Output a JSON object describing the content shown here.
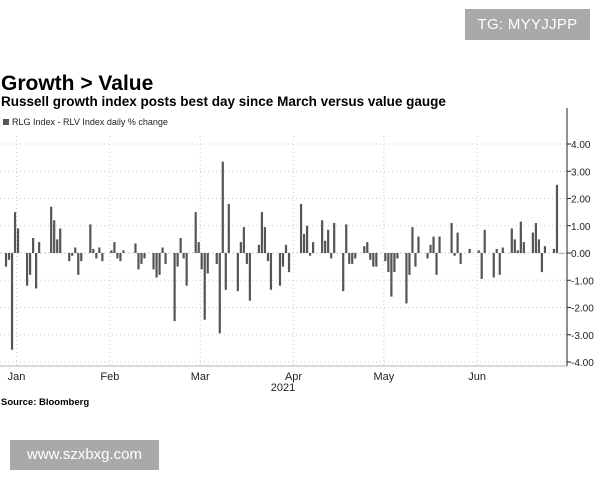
{
  "watermarks": {
    "top_right": "TG: MYYJJPP",
    "bottom_left": "www.szxbxg.com"
  },
  "source": "Source: Bloomberg",
  "colors": {
    "bar": "#555555",
    "axis": "#222222",
    "grid": "#cccccc",
    "badge": "#a9a9a9"
  },
  "chart_data": {
    "type": "bar",
    "title": "Growth > Value",
    "subtitle": "Russell growth index posts best day since March versus value gauge",
    "legend": "RLG Index - RLV Index daily % change",
    "legend_position": "top-left",
    "xlabel": "2021",
    "ylabel": "",
    "ylim": [
      -4.0,
      4.0
    ],
    "y_ticks": [
      "4.00",
      "3.00",
      "2.00",
      "1.00",
      "0.00",
      "-1.00",
      "-2.00",
      "-3.00",
      "-4.00"
    ],
    "y_axis_side": "right",
    "month_labels": [
      {
        "label": "Jan",
        "day": 7.5
      },
      {
        "label": "Feb",
        "day": 38.5
      },
      {
        "label": "Mar",
        "day": 68.5
      },
      {
        "label": "Apr",
        "day": 99.5
      },
      {
        "label": "May",
        "day": 129.5
      },
      {
        "label": "Jun",
        "day": 160.5
      }
    ],
    "dates": [
      4,
      5,
      6,
      7,
      8,
      11,
      12,
      13,
      14,
      15,
      19,
      20,
      21,
      22,
      25,
      26,
      27,
      28,
      29,
      32,
      33,
      34,
      35,
      36,
      39,
      40,
      41,
      42,
      43,
      47,
      48,
      49,
      50,
      53,
      54,
      55,
      56,
      57,
      60,
      61,
      62,
      63,
      64,
      67,
      68,
      69,
      70,
      71,
      74,
      75,
      76,
      77,
      78,
      81,
      82,
      83,
      84,
      85,
      88,
      89,
      90,
      91,
      92,
      95,
      96,
      97,
      98,
      102,
      103,
      104,
      105,
      106,
      109,
      110,
      111,
      112,
      113,
      116,
      117,
      118,
      119,
      120,
      123,
      124,
      125,
      126,
      127,
      130,
      131,
      132,
      133,
      134,
      137,
      138,
      139,
      140,
      141,
      144,
      145,
      146,
      147,
      148,
      152,
      153,
      154,
      155,
      158
    ],
    "values": [
      -0.5,
      -0.25,
      -3.55,
      1.5,
      0.9,
      -1.2,
      -0.8,
      0.55,
      -1.3,
      0.4,
      1.7,
      1.2,
      0.5,
      0.9,
      -0.3,
      -0.1,
      0.2,
      -0.8,
      -0.3,
      1.05,
      0.15,
      -0.2,
      0.2,
      -0.3,
      0.1,
      0.4,
      -0.2,
      -0.3,
      0.1,
      0.35,
      -0.6,
      -0.4,
      -0.2,
      -0.6,
      -0.9,
      -0.8,
      0.2,
      -0.4,
      -2.5,
      -0.5,
      0.55,
      -0.2,
      -1.2,
      1.5,
      0.4,
      -0.6,
      -2.45,
      -0.75,
      -0.4,
      -2.95,
      3.35,
      -1.35,
      1.8,
      -1.4,
      0.4,
      0.95,
      -0.4,
      -1.75,
      0.3,
      1.5,
      0.95,
      -0.3,
      -1.35,
      -1.2,
      -0.5,
      0.3,
      -0.7,
      1.8,
      0.7,
      1.0,
      -0.1,
      0.4,
      1.2,
      0.45,
      0.85,
      -0.2,
      1.1,
      -1.4,
      1.05,
      -0.4,
      -0.4,
      -0.2,
      0.25,
      0.4,
      -0.25,
      -0.5,
      -0.5,
      -0.3,
      -0.7,
      -1.6,
      -0.7,
      -0.2,
      -1.85,
      -0.8,
      0.95,
      -0.5,
      0.6,
      -0.2,
      0.3,
      0.6,
      -0.8,
      0.6,
      1.1,
      -0.1,
      0.75,
      -0.4,
      0.15
    ]
  },
  "chart_extra": {
    "dates_2": [
      161,
      162,
      163,
      166,
      167,
      168,
      169,
      172,
      173,
      174,
      175,
      176,
      179,
      180,
      181,
      182,
      183,
      186,
      187,
      188,
      189
    ],
    "values_2": [
      0.1,
      -0.95,
      0.85,
      -0.9,
      0.15,
      -0.8,
      0.2,
      0.9,
      0.5,
      0.1,
      1.15,
      0.4,
      0.75,
      1.1,
      0.5,
      -0.7,
      0.25,
      0.15,
      2.5,
      0.0,
      0.0
    ]
  }
}
